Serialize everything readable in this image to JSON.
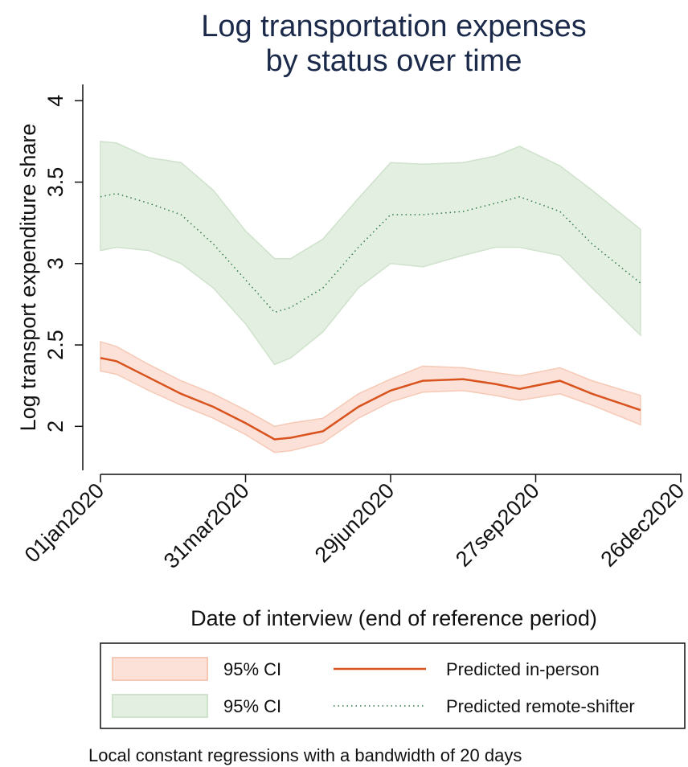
{
  "chart_data": {
    "type": "line",
    "title": [
      "Log transportation expenses",
      "by status over time"
    ],
    "x_label": "Date of interview (end of reference period)",
    "y_label": "Log transport expenditure share",
    "note": "Local constant regressions with a bandwidth of 20 days",
    "x": [
      "2020-01-01",
      "2020-01-11",
      "2020-01-31",
      "2020-02-20",
      "2020-03-11",
      "2020-03-31",
      "2020-04-18",
      "2020-04-28",
      "2020-05-18",
      "2020-06-09",
      "2020-06-29",
      "2020-07-19",
      "2020-08-13",
      "2020-09-02",
      "2020-09-17",
      "2020-10-12",
      "2020-11-01",
      "2020-12-01"
    ],
    "xlim": [
      "2020-01-01",
      "2020-12-26"
    ],
    "xticks": [
      {
        "value": "2020-01-01",
        "label": "01jan2020"
      },
      {
        "value": "2020-03-31",
        "label": "31mar2020"
      },
      {
        "value": "2020-06-29",
        "label": "29jun2020"
      },
      {
        "value": "2020-09-27",
        "label": "27sep2020"
      },
      {
        "value": "2020-12-26",
        "label": "26dec2020"
      }
    ],
    "ylim": [
      1.73,
      4.1
    ],
    "yticks": [
      2,
      2.5,
      3,
      3.5,
      4
    ],
    "series": [
      {
        "name": "95% CI",
        "kind": "band",
        "color": "#fbe1d7",
        "edge": "#f6c9b6",
        "lower": [
          2.34,
          2.32,
          2.22,
          2.13,
          2.05,
          1.95,
          1.84,
          1.85,
          1.9,
          2.05,
          2.15,
          2.21,
          2.22,
          2.19,
          2.16,
          2.2,
          2.13,
          2.01
        ],
        "upper": [
          2.52,
          2.49,
          2.38,
          2.28,
          2.2,
          2.1,
          2.0,
          2.02,
          2.05,
          2.2,
          2.29,
          2.37,
          2.36,
          2.33,
          2.31,
          2.36,
          2.28,
          2.19
        ]
      },
      {
        "name": "Predicted in-person",
        "kind": "line",
        "color": "#d9531e",
        "dash": "solid",
        "values": [
          2.42,
          2.4,
          2.3,
          2.2,
          2.12,
          2.02,
          1.92,
          1.93,
          1.97,
          2.12,
          2.22,
          2.28,
          2.29,
          2.26,
          2.23,
          2.28,
          2.2,
          2.1
        ]
      },
      {
        "name": "95% CI",
        "kind": "band",
        "color": "#e3efe1",
        "edge": "#cfe2cc",
        "lower": [
          3.08,
          3.1,
          3.08,
          3.0,
          2.85,
          2.63,
          2.38,
          2.42,
          2.58,
          2.85,
          3.0,
          2.98,
          3.05,
          3.1,
          3.1,
          3.05,
          2.85,
          2.56
        ],
        "upper": [
          3.75,
          3.74,
          3.65,
          3.62,
          3.45,
          3.2,
          3.03,
          3.03,
          3.15,
          3.4,
          3.62,
          3.61,
          3.62,
          3.66,
          3.72,
          3.6,
          3.45,
          3.21
        ]
      },
      {
        "name": "Predicted remote-shifter",
        "kind": "line",
        "color": "#2f7a45",
        "dash": "dotted",
        "values": [
          3.41,
          3.43,
          3.37,
          3.3,
          3.12,
          2.9,
          2.7,
          2.73,
          2.85,
          3.1,
          3.3,
          3.3,
          3.32,
          3.37,
          3.41,
          3.32,
          3.12,
          2.88
        ]
      }
    ]
  }
}
